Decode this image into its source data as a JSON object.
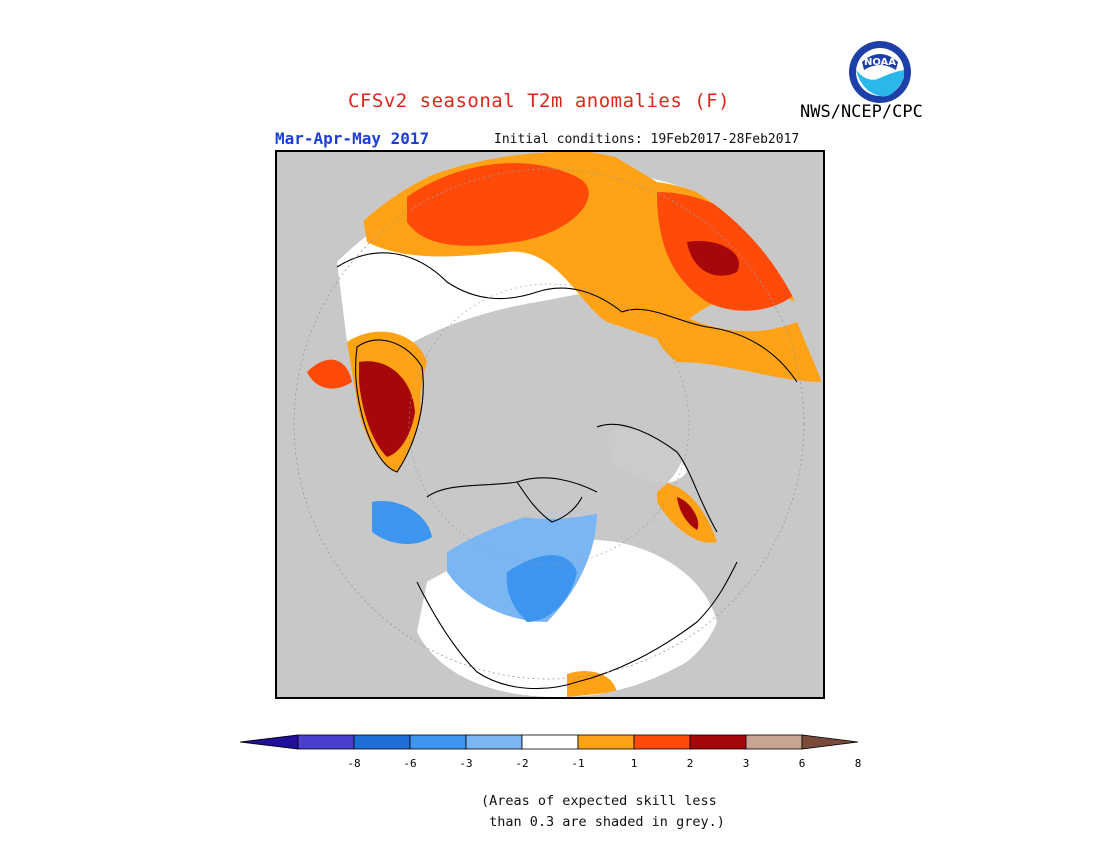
{
  "header": {
    "title": "CFSv2 seasonal T2m anomalies (F)",
    "period": "Mar-Apr-May 2017",
    "initial_conditions": "Initial conditions: 19Feb2017-28Feb2017",
    "agency": "NWS/NCEP/CPC",
    "logo_text": "NOAA"
  },
  "colors": {
    "ocean_grey": "#c8c8c8",
    "land_outline": "#000000",
    "title_red": "#e0261b",
    "period_blue": "#1e3fd6"
  },
  "legend": {
    "unit": "F",
    "bins": [
      {
        "label": "< -8",
        "color": "#20109a"
      },
      {
        "label": "-8 to -6",
        "color": "#4a3fd0"
      },
      {
        "label": "-6 to -3",
        "color": "#1f6fd9"
      },
      {
        "label": "-3 to -2",
        "color": "#3d95ef"
      },
      {
        "label": "-2 to -1",
        "color": "#7ab6f4"
      },
      {
        "label": "-1 to 1",
        "color": "#ffffff"
      },
      {
        "label": "1 to 2",
        "color": "#ffa215"
      },
      {
        "label": "2 to 3",
        "color": "#ff4a0a"
      },
      {
        "label": "3 to 6",
        "color": "#a6070a"
      },
      {
        "label": "6 to 8",
        "color": "#c9a393"
      },
      {
        "label": "> 8",
        "color": "#7a4a3a"
      }
    ],
    "ticks": [
      "-8",
      "-6",
      "-3",
      "-2",
      "-1",
      "1",
      "2",
      "3",
      "6",
      "8"
    ]
  },
  "note": "(Areas of expected skill less\n than 0.3 are shaded in grey.)"
}
